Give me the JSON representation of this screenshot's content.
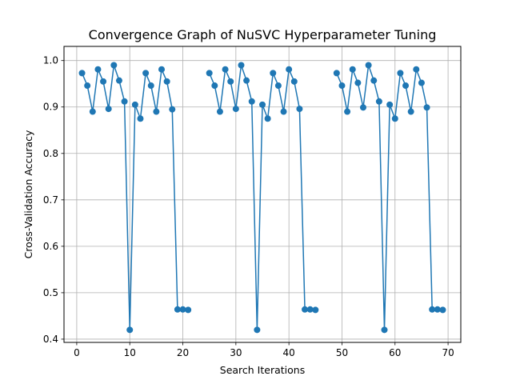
{
  "chart_data": {
    "type": "line",
    "title": "Convergence Graph of NuSVC Hyperparameter Tuning",
    "xlabel": "Search Iterations",
    "ylabel": "Cross-Validation Accuracy",
    "xlim": [
      -2.4,
      72.4
    ],
    "ylim": [
      0.393,
      1.0305
    ],
    "xticks": [
      0,
      10,
      20,
      30,
      40,
      50,
      60,
      70
    ],
    "yticks": [
      0.4,
      0.5,
      0.6,
      0.7,
      0.8,
      0.9,
      1.0
    ],
    "ytick_labels": [
      "0.4",
      "0.5",
      "0.6",
      "0.7",
      "0.8",
      "0.9",
      "1.0"
    ],
    "grid": true,
    "line_color": "#1f77b4",
    "marker": "circle",
    "series": [
      {
        "segments": [
          {
            "x": [
              1,
              2,
              3,
              4,
              5,
              6,
              7,
              8,
              9,
              10,
              11,
              12,
              13,
              14,
              15,
              16,
              17,
              18,
              19,
              20,
              21
            ],
            "y": [
              0.973,
              0.946,
              0.89,
              0.981,
              0.955,
              0.896,
              0.99,
              0.957,
              0.912,
              0.42,
              0.905,
              0.875,
              0.973,
              0.946,
              0.89,
              0.981,
              0.955,
              0.895,
              0.464,
              0.464,
              0.463
            ]
          },
          {
            "x": [
              25,
              26,
              27,
              28,
              29,
              30,
              31,
              32,
              33,
              34,
              35,
              36,
              37,
              38,
              39,
              40,
              41,
              42,
              43,
              44,
              45
            ],
            "y": [
              0.973,
              0.946,
              0.89,
              0.981,
              0.955,
              0.896,
              0.99,
              0.957,
              0.912,
              0.42,
              0.905,
              0.875,
              0.973,
              0.946,
              0.89,
              0.981,
              0.955,
              0.896,
              0.464,
              0.464,
              0.463
            ]
          },
          {
            "x": [
              49,
              50,
              51,
              52,
              53,
              54,
              55,
              56,
              57,
              58,
              59,
              60,
              61,
              62,
              63,
              64,
              65,
              66,
              67,
              68,
              69
            ],
            "y": [
              0.973,
              0.946,
              0.89,
              0.981,
              0.952,
              0.899,
              0.99,
              0.957,
              0.912,
              0.42,
              0.905,
              0.875,
              0.973,
              0.946,
              0.89,
              0.981,
              0.952,
              0.899,
              0.464,
              0.464,
              0.463
            ]
          }
        ]
      }
    ]
  }
}
